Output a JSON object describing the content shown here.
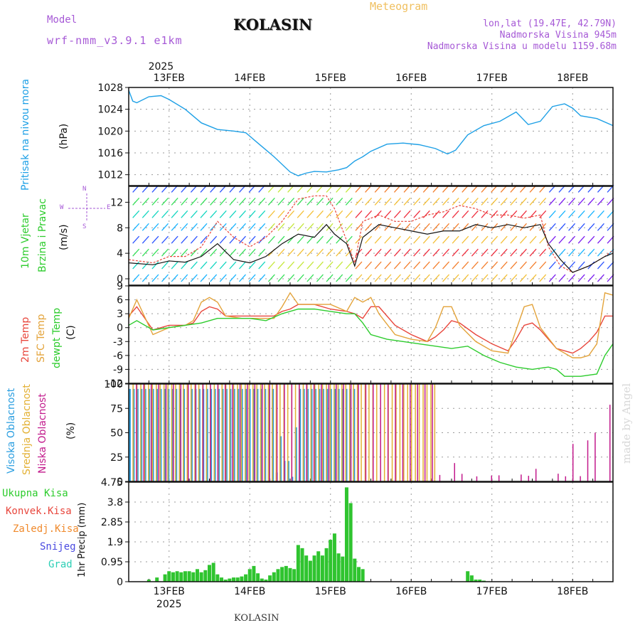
{
  "header": {
    "model_label": "Model",
    "model_name": "wrf-nmm_v3.9.1 e1km",
    "station": "KOLASIN",
    "product": "Meteogram",
    "lonlat": "lon,lat (19.47E, 42.79N)",
    "elevation": "Nadmorska Visina 945m",
    "model_elevation": "Nadmorska Visina u modelu 1159.68m",
    "footer_station": "KOLASIN",
    "credit": "made by Angel"
  },
  "axis_labels": {
    "pressure": [
      "Pritisak na nivou mora",
      "(hPa)"
    ],
    "wind": [
      "10m Vjetar",
      "Brzina i Pravac",
      "(m/s)"
    ],
    "wind_rose": {
      "n": "N",
      "s": "S",
      "e": "E",
      "w": "W"
    },
    "temp": [
      "2m Temp",
      "SFC Temp",
      "dewpt Temp",
      "(C)"
    ],
    "cloud": [
      "Visoka Oblacnost",
      "Srednja Oblacnost",
      "Niska Oblacnost",
      "(%)"
    ],
    "precip": [
      "Ukupna Kisa",
      "Konvek.Kisa",
      "Zaledj.Kisa",
      "Snijeg",
      "Grad",
      "1hr Precip (mm)"
    ]
  },
  "colors": {
    "pressure": "#1ea0e6",
    "temp2m": "#e8463c",
    "sfc": "#e3a33a",
    "dewpt": "#2dcc2d",
    "cloud_high": "#2a9ee0",
    "cloud_mid": "#e3b032",
    "cloud_low": "#c21a8c",
    "precip": "#2fc42f",
    "model": "#a659d6",
    "meteogram": "#f0c060"
  },
  "chart_data": [
    {
      "type": "line",
      "panel": "pressure",
      "ylabel": "(hPa)",
      "ylim": [
        1010,
        1028
      ],
      "yticks": [
        1012,
        1016,
        1020,
        1024,
        1028
      ],
      "x_ticks": [
        "13FEB",
        "14FEB",
        "15FEB",
        "16FEB",
        "17FEB",
        "18FEB"
      ],
      "x_year": "2025",
      "x_day_range": [
        12.5,
        18.5
      ],
      "series": [
        {
          "x": [
            12.5,
            12.55,
            12.6,
            12.75,
            12.9,
            13.0,
            13.2,
            13.4,
            13.6,
            13.8,
            13.95,
            14.1,
            14.3,
            14.5,
            14.6,
            14.7,
            14.8,
            14.95,
            15.1,
            15.2,
            15.3,
            15.4,
            15.5,
            15.7,
            15.9,
            16.1,
            16.3,
            16.45,
            16.55,
            16.7,
            16.9,
            17.1,
            17.3,
            17.45,
            17.6,
            17.75,
            17.9,
            18.0,
            18.1,
            18.3,
            18.5
          ],
          "y": [
            1027.5,
            1025.5,
            1025.2,
            1026.3,
            1026.5,
            1025.8,
            1024.0,
            1021.5,
            1020.3,
            1020.0,
            1019.7,
            1017.8,
            1015.3,
            1012.5,
            1011.8,
            1012.3,
            1012.6,
            1012.5,
            1012.9,
            1013.3,
            1014.5,
            1015.3,
            1016.3,
            1017.6,
            1017.8,
            1017.5,
            1016.8,
            1015.8,
            1016.5,
            1019.3,
            1021.0,
            1021.8,
            1023.5,
            1021.2,
            1021.8,
            1024.5,
            1025.0,
            1024.2,
            1022.8,
            1022.3,
            1021.0
          ]
        }
      ]
    },
    {
      "type": "line",
      "panel": "wind",
      "ylabel": "(m/s)",
      "ylim": [
        -1,
        14.5
      ],
      "yticks": [
        0,
        4,
        8,
        12
      ],
      "series": [
        {
          "name": "speed",
          "x": [
            12.5,
            12.8,
            13.0,
            13.2,
            13.4,
            13.6,
            13.8,
            14.0,
            14.2,
            14.4,
            14.6,
            14.8,
            14.95,
            15.05,
            15.2,
            15.3,
            15.4,
            15.6,
            15.8,
            16.0,
            16.2,
            16.4,
            16.6,
            16.8,
            17.0,
            17.2,
            17.4,
            17.6,
            17.7,
            17.85,
            18.0,
            18.2,
            18.4,
            18.5
          ],
          "y": [
            2.5,
            2.2,
            2.8,
            2.6,
            3.5,
            5.5,
            3.0,
            2.5,
            3.5,
            5.5,
            7.0,
            6.5,
            8.5,
            7.0,
            5.5,
            2.0,
            6.5,
            8.5,
            8.0,
            7.5,
            7.0,
            7.5,
            7.5,
            8.5,
            8.0,
            8.5,
            8.0,
            8.5,
            5.5,
            3.0,
            1.0,
            2.0,
            3.5,
            4.0
          ]
        },
        {
          "name": "gust",
          "x": [
            12.5,
            12.8,
            13.0,
            13.2,
            13.4,
            13.6,
            13.8,
            14.0,
            14.2,
            14.4,
            14.6,
            14.8,
            14.95,
            15.05,
            15.2,
            15.3,
            15.4,
            15.6,
            15.8,
            16.0,
            16.2,
            16.4,
            16.6,
            16.8,
            17.0,
            17.2,
            17.4,
            17.6,
            17.7,
            17.85,
            18.0,
            18.2,
            18.4,
            18.5
          ],
          "y": [
            3.0,
            2.5,
            3.5,
            3.5,
            5.0,
            9.0,
            6.5,
            5.0,
            6.5,
            9.0,
            12.5,
            13.0,
            13.0,
            11.0,
            6.0,
            2.5,
            9.0,
            10.0,
            9.0,
            9.0,
            10.0,
            10.5,
            11.5,
            11.0,
            10.0,
            10.0,
            9.5,
            10.0,
            5.0,
            2.0,
            1.0,
            2.0,
            3.5,
            4.5
          ]
        }
      ]
    },
    {
      "type": "line",
      "panel": "temperature",
      "ylabel": "(C)",
      "ylim": [
        -12,
        9
      ],
      "yticks": [
        -12,
        -9,
        -6,
        -3,
        0,
        3,
        6,
        9
      ],
      "series": [
        {
          "name": "2m Temp",
          "x": [
            12.5,
            12.6,
            12.8,
            13.0,
            13.2,
            13.3,
            13.4,
            13.5,
            13.6,
            13.7,
            13.9,
            14.1,
            14.3,
            14.4,
            14.5,
            14.6,
            14.8,
            15.0,
            15.2,
            15.3,
            15.4,
            15.5,
            15.6,
            15.8,
            16.0,
            16.2,
            16.3,
            16.4,
            16.5,
            16.6,
            16.8,
            17.0,
            17.2,
            17.3,
            17.4,
            17.5,
            17.6,
            17.8,
            18.0,
            18.1,
            18.2,
            18.3,
            18.4,
            18.5
          ],
          "y": [
            2.5,
            4.5,
            -0.5,
            0.5,
            0.5,
            1.0,
            3.5,
            4.5,
            4.0,
            2.5,
            2.5,
            2.5,
            2.5,
            3.5,
            4.0,
            5.0,
            5.0,
            4.0,
            3.5,
            3.0,
            2.0,
            4.5,
            4.5,
            0.5,
            -1.5,
            -3.0,
            -2.0,
            -0.5,
            1.5,
            1.0,
            -1.5,
            -3.5,
            -5.0,
            -2.5,
            0.5,
            1.0,
            -0.5,
            -4.5,
            -5.5,
            -4.5,
            -3.0,
            -1.0,
            2.5,
            2.5
          ]
        },
        {
          "name": "SFC Temp",
          "x": [
            12.5,
            12.6,
            12.8,
            13.0,
            13.2,
            13.3,
            13.4,
            13.5,
            13.6,
            13.7,
            13.9,
            14.1,
            14.3,
            14.4,
            14.5,
            14.6,
            14.8,
            15.0,
            15.2,
            15.3,
            15.4,
            15.5,
            15.6,
            15.8,
            16.0,
            16.2,
            16.3,
            16.4,
            16.5,
            16.6,
            16.8,
            17.0,
            17.2,
            17.3,
            17.4,
            17.5,
            17.6,
            17.8,
            18.0,
            18.1,
            18.2,
            18.3,
            18.4,
            18.5
          ],
          "y": [
            2.0,
            6.0,
            -1.5,
            0.0,
            0.5,
            1.5,
            5.5,
            6.5,
            5.5,
            2.5,
            2.0,
            2.0,
            2.0,
            4.5,
            7.5,
            5.0,
            5.0,
            5.0,
            3.5,
            6.5,
            5.5,
            6.5,
            3.0,
            -1.5,
            -2.5,
            -3.0,
            0.0,
            4.5,
            4.5,
            0.5,
            -3.0,
            -5.0,
            -5.5,
            -0.5,
            4.5,
            5.0,
            0.0,
            -4.5,
            -6.5,
            -6.5,
            -6.0,
            -3.5,
            7.5,
            7.0
          ]
        },
        {
          "name": "dewpt Temp",
          "x": [
            12.5,
            12.6,
            12.8,
            13.0,
            13.2,
            13.4,
            13.6,
            13.8,
            14.0,
            14.2,
            14.4,
            14.6,
            14.8,
            15.0,
            15.2,
            15.3,
            15.4,
            15.5,
            15.7,
            15.9,
            16.1,
            16.3,
            16.5,
            16.7,
            16.9,
            17.1,
            17.3,
            17.5,
            17.7,
            17.8,
            17.9,
            18.1,
            18.3,
            18.4,
            18.5
          ],
          "y": [
            0.5,
            1.5,
            -0.5,
            0.0,
            0.5,
            1.0,
            2.0,
            2.0,
            2.0,
            1.5,
            3.0,
            4.0,
            4.0,
            3.5,
            3.0,
            3.0,
            1.0,
            -1.5,
            -2.5,
            -3.0,
            -3.5,
            -4.0,
            -4.5,
            -4.0,
            -6.0,
            -7.5,
            -8.5,
            -9.0,
            -8.5,
            -9.0,
            -10.5,
            -10.5,
            -10.0,
            -6.0,
            -3.5
          ]
        }
      ]
    },
    {
      "type": "bar",
      "panel": "cloud",
      "ylabel": "(%)",
      "ylim": [
        0,
        100
      ],
      "yticks": [
        0,
        25,
        50,
        75,
        100
      ],
      "series": [
        {
          "name": "Visoka Oblacnost",
          "x_range": [
            12.5,
            15.3
          ],
          "typical": 95
        },
        {
          "name": "Srednja Oblacnost",
          "x_range": [
            12.5,
            16.3
          ],
          "typical": 100
        },
        {
          "name": "Niska Oblacnost",
          "x_range": [
            12.5,
            18.5
          ],
          "typical": 100
        }
      ]
    },
    {
      "type": "bar",
      "panel": "precip",
      "ylabel": "1hr Precip (mm)",
      "ylim": [
        0,
        4.75
      ],
      "yticks": [
        0,
        0.95,
        1.9,
        2.85,
        3.8,
        4.75
      ],
      "series": [
        {
          "name": "Ukupna Kisa",
          "x": [
            12.75,
            12.85,
            12.95,
            13.0,
            13.05,
            13.1,
            13.15,
            13.2,
            13.25,
            13.3,
            13.35,
            13.4,
            13.45,
            13.5,
            13.55,
            13.6,
            13.65,
            13.7,
            13.75,
            13.8,
            13.85,
            13.9,
            13.95,
            14.0,
            14.05,
            14.1,
            14.15,
            14.2,
            14.25,
            14.3,
            14.35,
            14.4,
            14.45,
            14.5,
            14.55,
            14.6,
            14.65,
            14.7,
            14.75,
            14.8,
            14.85,
            14.9,
            14.95,
            15.0,
            15.05,
            15.1,
            15.15,
            15.2,
            15.25,
            15.3,
            15.35,
            15.4,
            16.7,
            16.75,
            16.8,
            16.85,
            16.9
          ],
          "y": [
            0.1,
            0.2,
            0.35,
            0.5,
            0.45,
            0.5,
            0.45,
            0.5,
            0.5,
            0.45,
            0.6,
            0.45,
            0.55,
            0.8,
            0.9,
            0.35,
            0.2,
            0.1,
            0.15,
            0.2,
            0.2,
            0.25,
            0.35,
            0.6,
            0.75,
            0.4,
            0.15,
            0.1,
            0.3,
            0.45,
            0.6,
            0.7,
            0.75,
            0.65,
            0.6,
            1.75,
            1.6,
            1.25,
            1.0,
            1.25,
            1.45,
            1.25,
            1.6,
            2.0,
            2.3,
            1.35,
            1.2,
            4.5,
            3.75,
            1.1,
            0.7,
            0.6,
            0.5,
            0.3,
            0.1,
            0.1,
            0.05
          ]
        }
      ]
    }
  ]
}
